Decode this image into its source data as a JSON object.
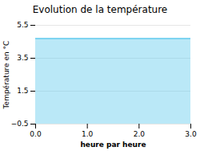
{
  "chart_data": {
    "type": "area",
    "title": "Evolution de la température",
    "xlabel": "heure par heure",
    "ylabel": "Température en °C",
    "x": [
      0,
      1,
      2,
      3
    ],
    "values": [
      4.7,
      4.7,
      4.7,
      4.7
    ],
    "color": "#66ccee",
    "xlim": [
      0,
      3
    ],
    "ylim": [
      -0.5,
      5.5
    ],
    "xticks": [
      0,
      1,
      2,
      3
    ],
    "yticks": [
      -0.5,
      1.5,
      3.5,
      5.5
    ],
    "grid": true
  }
}
